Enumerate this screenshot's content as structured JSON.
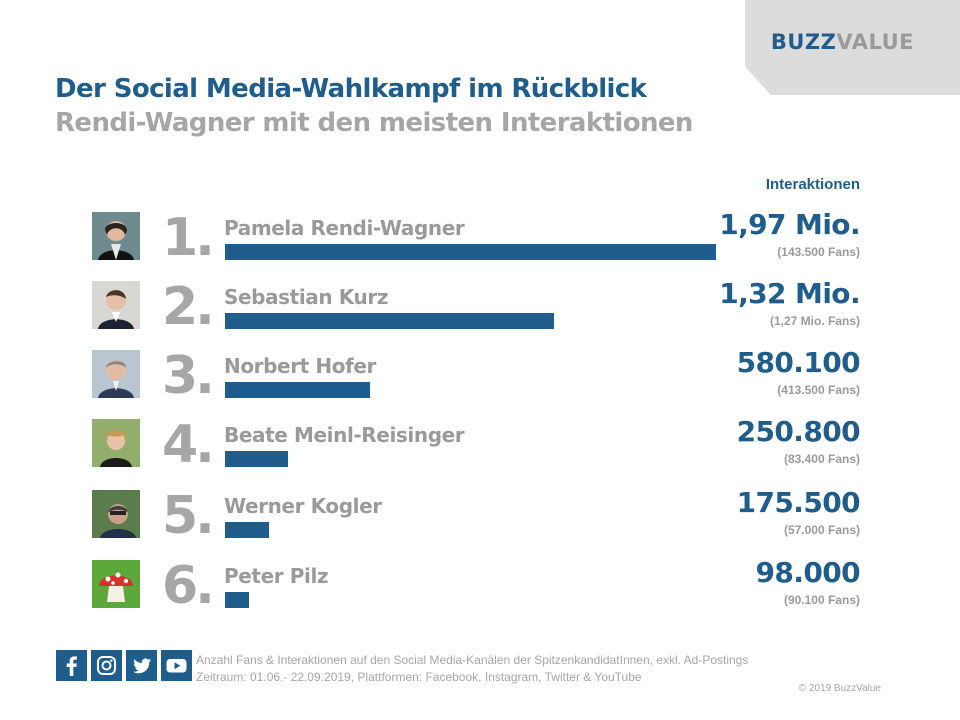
{
  "logo": {
    "part1": "BUZZ",
    "part2": "VALUE"
  },
  "header": {
    "title": "Der Social Media-Wahlkampf im Rückblick",
    "subtitle": "Rendi-Wagner mit den meisten Interaktionen"
  },
  "column_header": "Interaktionen",
  "chart_data": {
    "type": "bar",
    "orientation": "horizontal",
    "title": "Der Social Media-Wahlkampf im Rückblick",
    "subtitle": "Rendi-Wagner mit den meisten Interaktionen",
    "value_label": "Interaktionen",
    "categories": [
      "Pamela Rendi-Wagner",
      "Sebastian Kurz",
      "Norbert Hofer",
      "Beate Meinl-Reisinger",
      "Werner Kogler",
      "Peter Pilz"
    ],
    "values": [
      1970000,
      1320000,
      580100,
      250800,
      175500,
      98000
    ],
    "ranks": [
      "1.",
      "2.",
      "3.",
      "4.",
      "5.",
      "6."
    ],
    "value_labels": [
      "1,97 Mio.",
      "1,32 Mio.",
      "580.100",
      "250.800",
      "175.500",
      "98.000"
    ],
    "fans_labels": [
      "(143.500 Fans)",
      "(1,27 Mio. Fans)",
      "(413.500 Fans)",
      "(83.400 Fans)",
      "(57.000 Fans)",
      "(90.100 Fans)"
    ],
    "xlim": [
      0,
      1970000
    ],
    "bar_color": "#1f5d8c"
  },
  "footer": {
    "note_line1": "Anzahl Fans & Interaktionen auf den Social Media-Kanälen der SpitzenkandidatInnen,  exkl. Ad-Postings",
    "note_line2": "Zeitraum: 01.06.- 22.09.2019, Plattformen: Facebook, Instagram, Twitter & YouTube",
    "copyright": "© 2019 BuzzValue",
    "social_icons": [
      "facebook-icon",
      "instagram-icon",
      "twitter-icon",
      "youtube-icon"
    ]
  },
  "colors": {
    "primary": "#1f5d8c",
    "secondary": "#a6a6a6",
    "corner": "#dcdcdc"
  }
}
